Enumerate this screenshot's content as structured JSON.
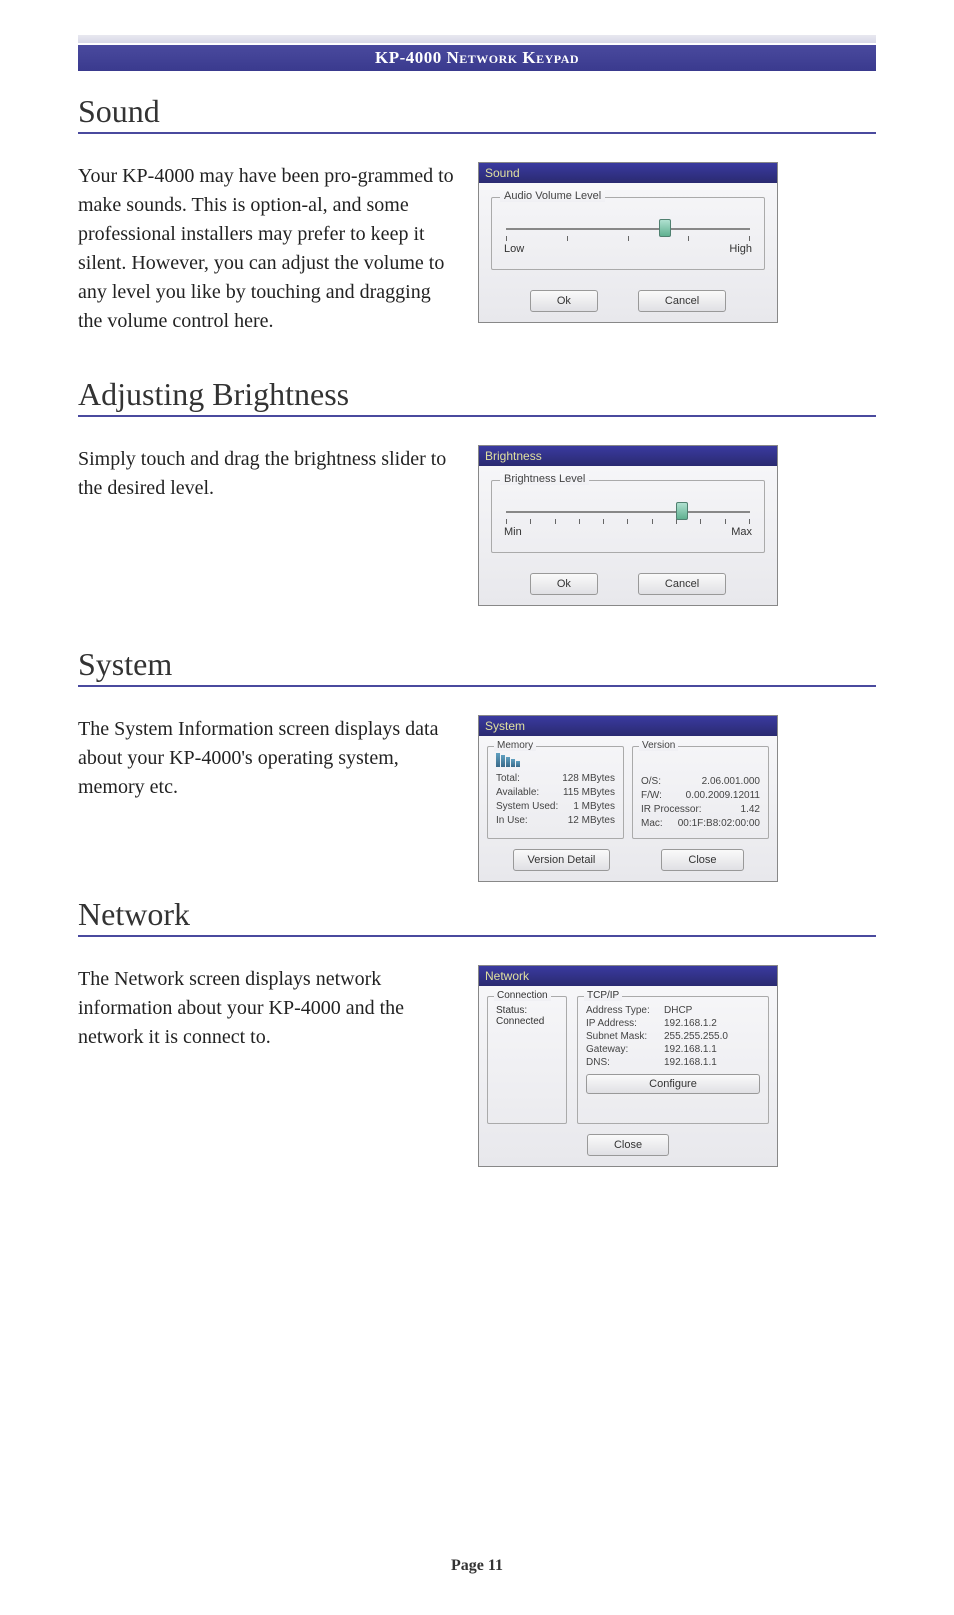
{
  "header": {
    "title": "KP-4000 Network Keypad"
  },
  "sections": {
    "sound": {
      "heading": "Sound",
      "body": "Your KP-4000 may have been pro-grammed to make sounds. This is option-al, and some professional installers may prefer to keep it silent. However, you can adjust the volume to any level you like by touching and dragging the volume control here.",
      "screenshot": {
        "title": "Sound",
        "legend": "Audio Volume Level",
        "low_label": "Low",
        "high_label": "High",
        "slider_percent": 65,
        "tick_count": 5,
        "ok": "Ok",
        "cancel": "Cancel"
      }
    },
    "brightness": {
      "heading": "Adjusting Brightness",
      "body": "Simply touch and drag the brightness slider to the desired level.",
      "screenshot": {
        "title": "Brightness",
        "legend": "Brightness Level",
        "min_label": "Min",
        "max_label": "Max",
        "slider_percent": 72,
        "tick_count": 11,
        "ok": "Ok",
        "cancel": "Cancel"
      }
    },
    "system": {
      "heading": "System",
      "body": "The System Information screen displays data about your KP-4000's operating system, memory etc.",
      "screenshot": {
        "title": "System",
        "memory_legend": "Memory",
        "version_legend": "Version",
        "memory": {
          "total_label": "Total:",
          "total_value": "128 MBytes",
          "available_label": "Available:",
          "available_value": "115 MBytes",
          "used_label": "System Used:",
          "used_value": "1  MBytes",
          "inuse_label": "In Use:",
          "inuse_value": "12  MBytes"
        },
        "version": {
          "os_label": "O/S:",
          "os_value": "2.06.001.000",
          "fw_label": "F/W:",
          "fw_value": "0.00.2009.12011",
          "ir_label": "IR Processor:",
          "ir_value": "1.42",
          "mac_label": "Mac:",
          "mac_value": "00:1F:B8:02:00:00"
        },
        "version_detail": "Version Detail",
        "close": "Close"
      }
    },
    "network": {
      "heading": "Network",
      "body": "The Network screen displays network information about your KP-4000 and the network it is connect to.",
      "screenshot": {
        "title": "Network",
        "connection_legend": "Connection",
        "tcpip_legend": "TCP/IP",
        "status_label": "Status:",
        "status_value": "Connected",
        "tcpip": {
          "addr_type_label": "Address Type:",
          "addr_type_value": "DHCP",
          "ip_label": "IP Address:",
          "ip_value": "192.168.1.2",
          "subnet_label": "Subnet Mask:",
          "subnet_value": "255.255.255.0",
          "gateway_label": "Gateway:",
          "gateway_value": "192.168.1.1",
          "dns_label": "DNS:",
          "dns_value": "192.168.1.1"
        },
        "configure": "Configure",
        "close": "Close"
      }
    }
  },
  "footer": {
    "page_label": "Page 11"
  },
  "colors": {
    "rule": "#4a4a9e",
    "title_bar_top": "#4a4a9e",
    "title_bar_bottom": "#3a3a8e",
    "sb_title_text": "#e0e0a0"
  }
}
